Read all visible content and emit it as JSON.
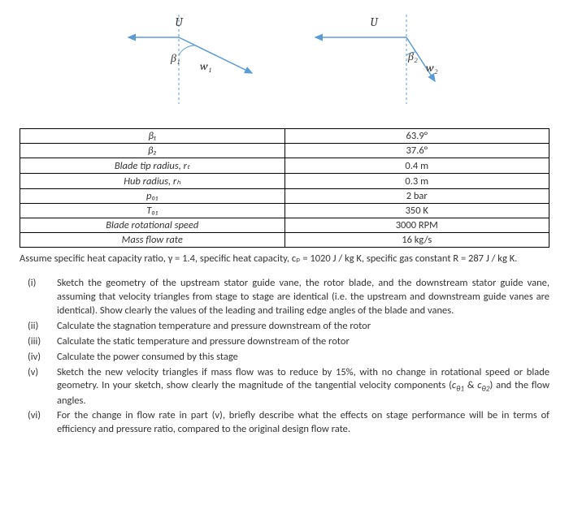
{
  "diagram": {
    "u_label": "U",
    "left": {
      "angle_label": "β₁",
      "vec_label": "w₁"
    },
    "right": {
      "angle_label": "β₂",
      "vec_label": "w₂"
    },
    "colors": {
      "u_arrow": "#5b9bd5",
      "w_arrow": "#5b9bd5",
      "dashed": "#5b9bd5",
      "text": "#333"
    }
  },
  "table": {
    "rows": [
      {
        "param": "β₁",
        "value": "63.9°"
      },
      {
        "param": "β₂",
        "value": "37.6°"
      },
      {
        "param": "Blade tip radius, rₜ",
        "value": "0.4 m"
      },
      {
        "param": "Hub radius, rₕ",
        "value": "0.3 m"
      },
      {
        "param": "p₀₁",
        "value": "2 bar"
      },
      {
        "param": "T₀₁",
        "value": "350 K"
      },
      {
        "param": "Blade rotational speed",
        "value": "3000 RPM"
      },
      {
        "param": "Mass flow rate",
        "value": "16 kg/s"
      }
    ]
  },
  "assume_text": "Assume specific heat capacity ratio, γ = 1.4, specific heat capacity, cₚ = 1020 J / kg K, specific gas constant R = 287 J / kg K.",
  "questions": [
    {
      "num": "(i)",
      "text": "Sketch the geometry of the upstream stator guide vane, the rotor blade, and the downstream stator guide vane, assuming that velocity triangles from stage to stage are identical (i.e. the upstream and downstream guide vanes are identical). Show clearly the values of the leading and trailing edge angles of the blade and vanes."
    },
    {
      "num": "(ii)",
      "text": "Calculate the stagnation temperature and pressure downstream of the rotor"
    },
    {
      "num": "(iii)",
      "text": "Calculate the static temperature and pressure downstream of the rotor"
    },
    {
      "num": "(iv)",
      "text": "Calculate the power consumed by this stage"
    },
    {
      "num": "(v)",
      "text": "Sketch the new velocity triangles if mass flow was to reduce by 15%, with no change in rotational speed or blade geometry. In your sketch, show clearly the magnitude of the tangential velocity components (c_θ1 & c_θ2) and the flow angles."
    },
    {
      "num": "(vi)",
      "text": "For the change in flow rate in part (v), briefly describe what the effects on stage performance will be in terms of efficiency and pressure ratio, compared to the original design flow rate."
    }
  ]
}
